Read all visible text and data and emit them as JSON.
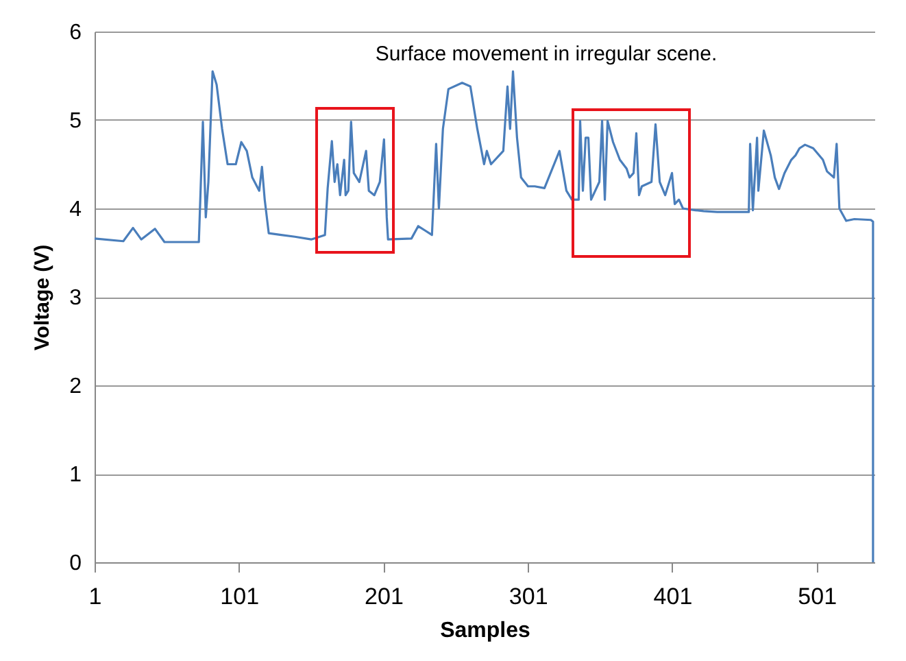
{
  "chart_data": {
    "type": "line",
    "title": "Surface movement in irregular scene.",
    "xlabel": "Samples",
    "ylabel": "Voltage (V)",
    "xlim": [
      1,
      541
    ],
    "xticks": [
      1,
      101,
      201,
      301,
      401,
      501
    ],
    "ylim": [
      0,
      6
    ],
    "yticks": [
      0,
      1,
      2,
      3,
      4,
      5,
      6
    ],
    "grid": "y",
    "series": [
      {
        "color": "#4a7ebb",
        "x": [
          1,
          20.9,
          27.6,
          33.3,
          42.8,
          49.4,
          73.2,
          76,
          78,
          79.8,
          82.7,
          85.5,
          89.3,
          93.1,
          98.8,
          102.6,
          106.4,
          110.2,
          115,
          116.9,
          118.8,
          121.6,
          130.2,
          139.7,
          151,
          160.5,
          162.4,
          165.3,
          167.2,
          169.1,
          171,
          173.8,
          174.8,
          176.7,
          178.6,
          180.5,
          184.3,
          189,
          190.9,
          194.7,
          198.5,
          201.4,
          203.3,
          204.2,
          220.4,
          225.1,
          229.9,
          234.6,
          237.5,
          239.4,
          242.2,
          246,
          255.5,
          261.2,
          266,
          270.7,
          272.6,
          275.5,
          284,
          286.9,
          288.7,
          290.7,
          293.5,
          296.3,
          301.1,
          305.8,
          312.5,
          322.9,
          327.7,
          331.5,
          336.2,
          337.2,
          339.1,
          341,
          342.9,
          344.8,
          350.5,
          352.4,
          354.3,
          356.2,
          360,
          364.7,
          369.4,
          371.4,
          374.2,
          376.1,
          378,
          379.9,
          386.6,
          389.4,
          392.3,
          396.1,
          400.8,
          402.7,
          405.6,
          408.4,
          417,
          422.7,
          432.1,
          454,
          454.9,
          456.8,
          459.7,
          460.6,
          464.4,
          469.2,
          472,
          474.9,
          478.7,
          483.4,
          486.3,
          489.1,
          492.9,
          498.6,
          505.3,
          508.1,
          512.9,
          514.8,
          516.7,
          521.4,
          527.1,
          538.5,
          540,
          540
        ],
        "values": [
          3.66,
          3.63,
          3.78,
          3.65,
          3.77,
          3.62,
          3.62,
          4.98,
          3.9,
          4.3,
          5.55,
          5.4,
          4.9,
          4.5,
          4.5,
          4.75,
          4.65,
          4.35,
          4.2,
          4.47,
          4.1,
          3.72,
          3.7,
          3.68,
          3.65,
          3.7,
          4.23,
          4.76,
          4.3,
          4.5,
          4.15,
          4.55,
          4.15,
          4.2,
          4.98,
          4.4,
          4.3,
          4.65,
          4.2,
          4.15,
          4.3,
          4.78,
          3.9,
          3.65,
          3.66,
          3.8,
          3.75,
          3.7,
          4.73,
          4.0,
          4.9,
          5.35,
          5.42,
          5.38,
          4.9,
          4.5,
          4.65,
          4.5,
          4.65,
          5.38,
          4.9,
          5.55,
          4.8,
          4.35,
          4.25,
          4.25,
          4.23,
          4.65,
          4.2,
          4.1,
          4.1,
          4.99,
          4.2,
          4.8,
          4.8,
          4.1,
          4.3,
          4.99,
          4.1,
          4.99,
          4.75,
          4.55,
          4.45,
          4.35,
          4.4,
          4.85,
          4.15,
          4.25,
          4.3,
          4.95,
          4.3,
          4.15,
          4.4,
          4.05,
          4.1,
          4.0,
          3.98,
          3.97,
          3.96,
          3.96,
          4.73,
          3.98,
          4.8,
          4.2,
          4.88,
          4.6,
          4.35,
          4.22,
          4.4,
          4.55,
          4.6,
          4.68,
          4.72,
          4.68,
          4.55,
          4.42,
          4.35,
          4.73,
          4.0,
          3.86,
          3.88,
          3.87,
          3.85,
          0
        ]
      }
    ]
  }
}
